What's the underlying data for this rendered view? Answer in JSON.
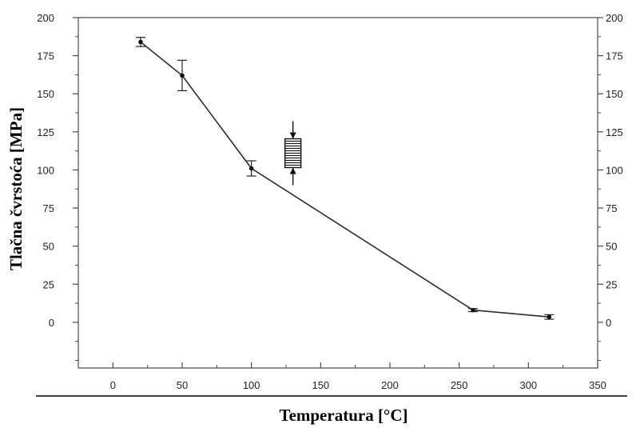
{
  "chart_data": {
    "type": "line",
    "title": "",
    "xlabel": "Temperatura [°C]",
    "ylabel": "Tlačna čvrstoća [MPa]",
    "xlim": [
      -25,
      350
    ],
    "ylim": [
      -30,
      200
    ],
    "xticks": [
      0,
      50,
      100,
      150,
      200,
      250,
      300,
      350
    ],
    "yticks": [
      0,
      25,
      50,
      75,
      100,
      125,
      150,
      175,
      200
    ],
    "grid": false,
    "legend": "none",
    "series": [
      {
        "x": [
          20,
          50,
          100,
          260,
          315
        ],
        "y": [
          184,
          162,
          101,
          8,
          3.5
        ],
        "err": [
          3,
          10,
          5,
          1,
          1.5
        ]
      }
    ],
    "inset_icon": "compression-specimen-icon",
    "inset_position": {
      "x": 130,
      "y": 111
    },
    "colors": {
      "line": "#2b2b2b",
      "axis": "#4a4a4a",
      "text": "#000000"
    }
  }
}
